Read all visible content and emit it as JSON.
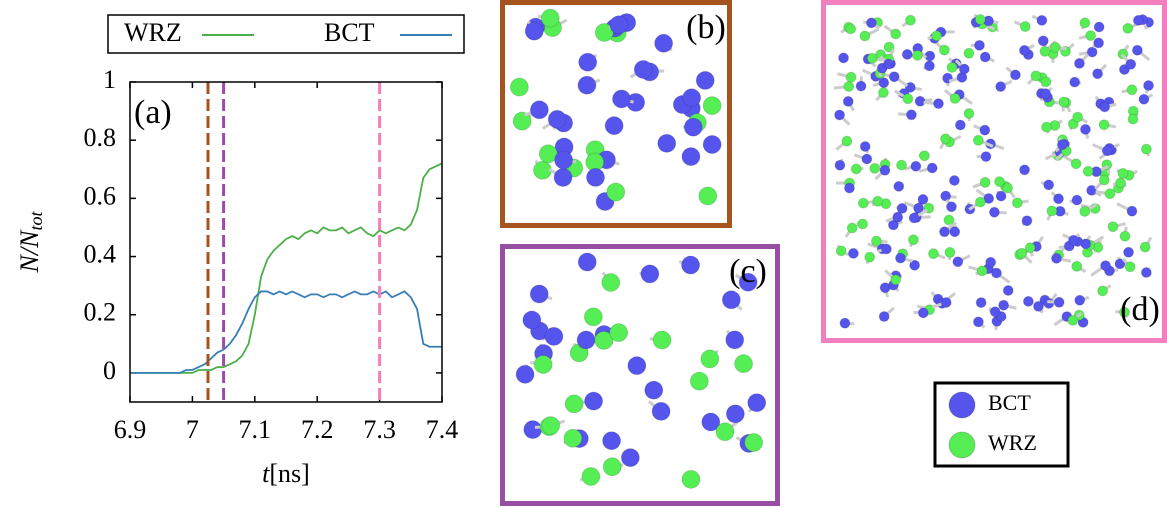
{
  "chart_data": {
    "type": "line",
    "panel_label": "(a)",
    "x_label_var": "t",
    "x_label_unit": "[ns]",
    "y_label_main": "N/N",
    "y_label_sub": "tot",
    "xlim": [
      6.9,
      7.4
    ],
    "xticks": [
      6.9,
      7,
      7.1,
      7.2,
      7.3,
      7.4
    ],
    "ylim": [
      -0.1,
      1
    ],
    "yticks": [
      0,
      0.2,
      0.4,
      0.6,
      0.8,
      1
    ],
    "x": [
      6.9,
      6.91,
      6.92,
      6.93,
      6.94,
      6.95,
      6.96,
      6.97,
      6.98,
      6.99,
      7.0,
      7.01,
      7.02,
      7.03,
      7.04,
      7.05,
      7.06,
      7.07,
      7.08,
      7.09,
      7.1,
      7.11,
      7.12,
      7.13,
      7.14,
      7.15,
      7.16,
      7.17,
      7.18,
      7.19,
      7.2,
      7.21,
      7.22,
      7.23,
      7.24,
      7.25,
      7.26,
      7.27,
      7.28,
      7.29,
      7.3,
      7.31,
      7.32,
      7.33,
      7.34,
      7.35,
      7.36,
      7.37,
      7.38,
      7.39,
      7.4
    ],
    "series": [
      {
        "name": "WRZ",
        "color": "#4daf4a",
        "values": [
          0,
          0,
          0,
          0,
          0,
          0,
          0,
          0,
          0,
          0,
          0,
          0.01,
          0.01,
          0.01,
          0.02,
          0.02,
          0.03,
          0.04,
          0.06,
          0.1,
          0.2,
          0.33,
          0.39,
          0.42,
          0.44,
          0.46,
          0.47,
          0.46,
          0.48,
          0.49,
          0.48,
          0.5,
          0.49,
          0.49,
          0.5,
          0.48,
          0.49,
          0.5,
          0.48,
          0.47,
          0.49,
          0.48,
          0.49,
          0.5,
          0.49,
          0.51,
          0.56,
          0.67,
          0.7,
          0.71,
          0.72
        ]
      },
      {
        "name": "BCT",
        "color": "#377eb8",
        "values": [
          0,
          0,
          0,
          0,
          0,
          0,
          0,
          0,
          0,
          0.01,
          0.01,
          0.02,
          0.03,
          0.05,
          0.07,
          0.08,
          0.1,
          0.13,
          0.17,
          0.22,
          0.26,
          0.28,
          0.28,
          0.27,
          0.28,
          0.27,
          0.28,
          0.27,
          0.26,
          0.27,
          0.27,
          0.26,
          0.27,
          0.27,
          0.26,
          0.27,
          0.28,
          0.27,
          0.27,
          0.28,
          0.27,
          0.28,
          0.26,
          0.27,
          0.28,
          0.26,
          0.22,
          0.1,
          0.09,
          0.09,
          0.09
        ]
      }
    ],
    "markers": [
      {
        "x": 7.025,
        "color": "#a6531f"
      },
      {
        "x": 7.05,
        "color": "#984ea3"
      },
      {
        "x": 7.3,
        "color": "#f27fbf"
      }
    ]
  },
  "panels": [
    {
      "label": "(b)",
      "border_color": "#a6531f"
    },
    {
      "label": "(c)",
      "border_color": "#984ea3"
    },
    {
      "label": "(d)",
      "border_color": "#f27fbf"
    }
  ],
  "atom_legend": [
    {
      "name": "BCT",
      "color": "#5555ee"
    },
    {
      "name": "WRZ",
      "color": "#55ee55"
    }
  ]
}
